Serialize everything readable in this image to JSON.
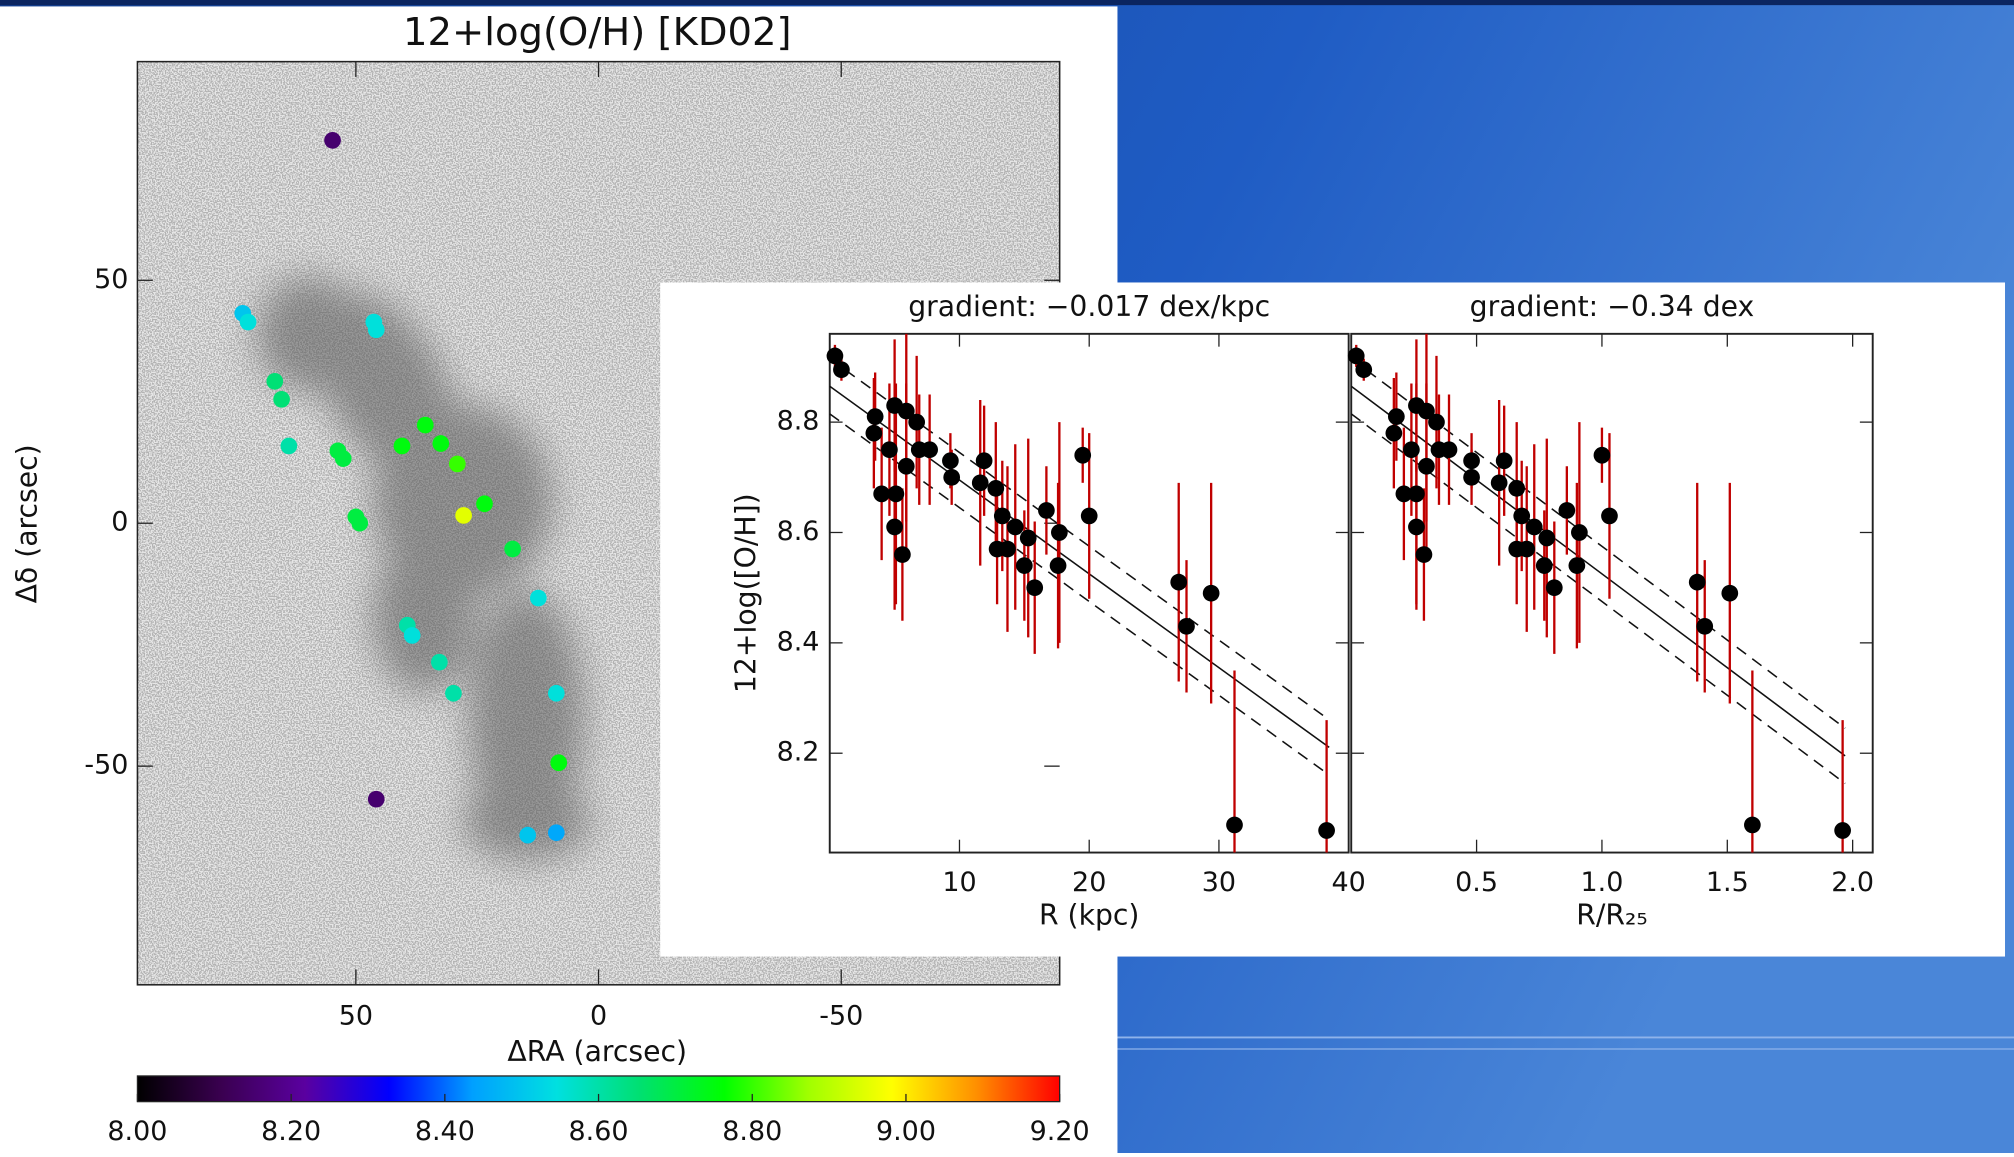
{
  "chart_data": [
    {
      "type": "map-scatter",
      "title": "12+log(O/H) [KD02]",
      "x_label": "ΔRA (arcsec)",
      "y_label": "Δδ (arcsec)",
      "xlim": [
        95,
        -95
      ],
      "ylim": [
        -95,
        95
      ],
      "xticks": [
        50,
        0,
        -50
      ],
      "yticks": [
        50,
        0,
        -50
      ],
      "x": [
        54.8,
        45.8,
        73.3,
        72.2,
        46.3,
        45.8,
        66.7,
        65.3,
        63.8,
        53.7,
        52.6,
        50.0,
        49.2,
        40.5,
        35.7,
        32.5,
        29.1,
        27.8,
        23.5,
        17.7,
        12.4,
        39.4,
        38.4,
        32.8,
        29.9,
        8.7,
        8.2,
        14.6,
        8.7
      ],
      "y": [
        78.8,
        -56.8,
        43.2,
        41.4,
        41.4,
        39.8,
        29.2,
        25.5,
        15.9,
        14.9,
        13.3,
        1.3,
        0.0,
        15.9,
        20.2,
        16.4,
        12.2,
        1.6,
        4.0,
        -5.3,
        -15.4,
        -21.0,
        -23.1,
        -28.6,
        -35.0,
        -35.0,
        -49.3,
        -64.2,
        -63.7
      ],
      "values": [
        8.15,
        8.15,
        8.5,
        8.55,
        8.55,
        8.55,
        8.65,
        8.65,
        8.6,
        8.7,
        8.7,
        8.7,
        8.7,
        8.75,
        8.75,
        8.75,
        8.8,
        8.95,
        8.75,
        8.7,
        8.55,
        8.6,
        8.55,
        8.6,
        8.6,
        8.55,
        8.75,
        8.5,
        8.45
      ],
      "colorbar": {
        "lim": [
          8.0,
          9.2
        ],
        "ticks": [
          {
            "value": 8.0,
            "label": "8.00"
          },
          {
            "value": 8.2,
            "label": "8.20"
          },
          {
            "value": 8.4,
            "label": "8.40"
          },
          {
            "value": 8.6,
            "label": "8.60"
          },
          {
            "value": 8.8,
            "label": "8.80"
          },
          {
            "value": 9.0,
            "label": "9.00"
          },
          {
            "value": 9.2,
            "label": "9.20"
          }
        ],
        "colors": [
          "#000000",
          "#3a0050",
          "#5a00a0",
          "#0000ff",
          "#00a0ff",
          "#00e0e0",
          "#00e070",
          "#00ff00",
          "#a0ff00",
          "#ffff00",
          "#ff9000",
          "#ff0000"
        ]
      }
    },
    {
      "type": "errorbar",
      "title": "gradient: −0.017 dex/kpc",
      "x_label": "R (kpc)",
      "y_label": "12+log([O/H])",
      "xlim": [
        0,
        40
      ],
      "ylim": [
        8.02,
        8.96
      ],
      "xticks": [
        10,
        20,
        30,
        40
      ],
      "yticks": [
        8.2,
        8.4,
        8.6,
        8.8
      ],
      "show_ytick_labels": true,
      "color": "#000000",
      "error_color": "#c00000",
      "x": [
        0.4,
        0.9,
        3.4,
        3.5,
        4.0,
        4.6,
        5.0,
        5.0,
        5.1,
        5.6,
        5.9,
        5.9,
        6.7,
        6.9,
        7.7,
        9.3,
        9.4,
        11.9,
        11.6,
        12.8,
        12.9,
        13.3,
        13.7,
        14.3,
        15.0,
        15.3,
        15.8,
        16.7,
        17.7,
        17.6,
        19.5,
        20.0,
        26.9,
        27.5,
        29.4,
        31.2,
        38.3
      ],
      "values": [
        8.92,
        8.895,
        8.78,
        8.81,
        8.67,
        8.75,
        8.61,
        8.83,
        8.67,
        8.56,
        8.82,
        8.72,
        8.8,
        8.75,
        8.75,
        8.73,
        8.7,
        8.73,
        8.69,
        8.68,
        8.57,
        8.63,
        8.57,
        8.61,
        8.54,
        8.59,
        8.5,
        8.64,
        8.6,
        8.54,
        8.74,
        8.63,
        8.51,
        8.43,
        8.49,
        8.07,
        8.06
      ],
      "errors": [
        0.02,
        0.02,
        0.1,
        0.08,
        0.12,
        0.12,
        0.15,
        0.12,
        0.2,
        0.12,
        0.2,
        0.15,
        0.12,
        0.1,
        0.1,
        0.05,
        0.05,
        0.1,
        0.15,
        0.12,
        0.1,
        0.1,
        0.15,
        0.15,
        0.1,
        0.18,
        0.12,
        0.08,
        0.2,
        0.15,
        0.05,
        0.15,
        0.18,
        0.12,
        0.2,
        0.28,
        0.2
      ],
      "fit": {
        "intercept": 8.865,
        "slope": -0.017,
        "scatter": 0.05,
        "x_range": [
          0,
          38.5
        ]
      }
    },
    {
      "type": "errorbar",
      "title": "gradient: −0.34 dex",
      "x_label": "R/R₂₅",
      "xlim": [
        0,
        2.08
      ],
      "ylim": [
        8.02,
        8.96
      ],
      "xticks": [
        0.5,
        {
          "value": 1.0,
          "label": "1.0"
        },
        1.5,
        {
          "value": 2.0,
          "label": "2.0"
        }
      ],
      "yticks": [
        8.2,
        8.4,
        8.6,
        8.8
      ],
      "show_ytick_labels": false,
      "color": "#000000",
      "error_color": "#c00000",
      "x": [
        0.02,
        0.05,
        0.17,
        0.18,
        0.21,
        0.24,
        0.26,
        0.26,
        0.26,
        0.29,
        0.3,
        0.3,
        0.34,
        0.35,
        0.39,
        0.48,
        0.48,
        0.61,
        0.59,
        0.66,
        0.66,
        0.68,
        0.7,
        0.73,
        0.77,
        0.78,
        0.81,
        0.86,
        0.91,
        0.9,
        1.0,
        1.03,
        1.38,
        1.41,
        1.51,
        1.6,
        1.96
      ],
      "values": [
        8.92,
        8.895,
        8.78,
        8.81,
        8.67,
        8.75,
        8.61,
        8.83,
        8.67,
        8.56,
        8.82,
        8.72,
        8.8,
        8.75,
        8.75,
        8.73,
        8.7,
        8.73,
        8.69,
        8.68,
        8.57,
        8.63,
        8.57,
        8.61,
        8.54,
        8.59,
        8.5,
        8.64,
        8.6,
        8.54,
        8.74,
        8.63,
        8.51,
        8.43,
        8.49,
        8.07,
        8.06
      ],
      "errors": [
        0.02,
        0.02,
        0.1,
        0.08,
        0.12,
        0.12,
        0.15,
        0.12,
        0.2,
        0.12,
        0.2,
        0.15,
        0.12,
        0.1,
        0.1,
        0.05,
        0.05,
        0.1,
        0.15,
        0.12,
        0.1,
        0.1,
        0.15,
        0.15,
        0.1,
        0.18,
        0.12,
        0.08,
        0.2,
        0.15,
        0.05,
        0.15,
        0.18,
        0.12,
        0.2,
        0.28,
        0.2
      ],
      "fit": {
        "intercept": 8.865,
        "slope": -0.34,
        "scatter": 0.05,
        "x_range": [
          0,
          1.97
        ]
      }
    }
  ]
}
